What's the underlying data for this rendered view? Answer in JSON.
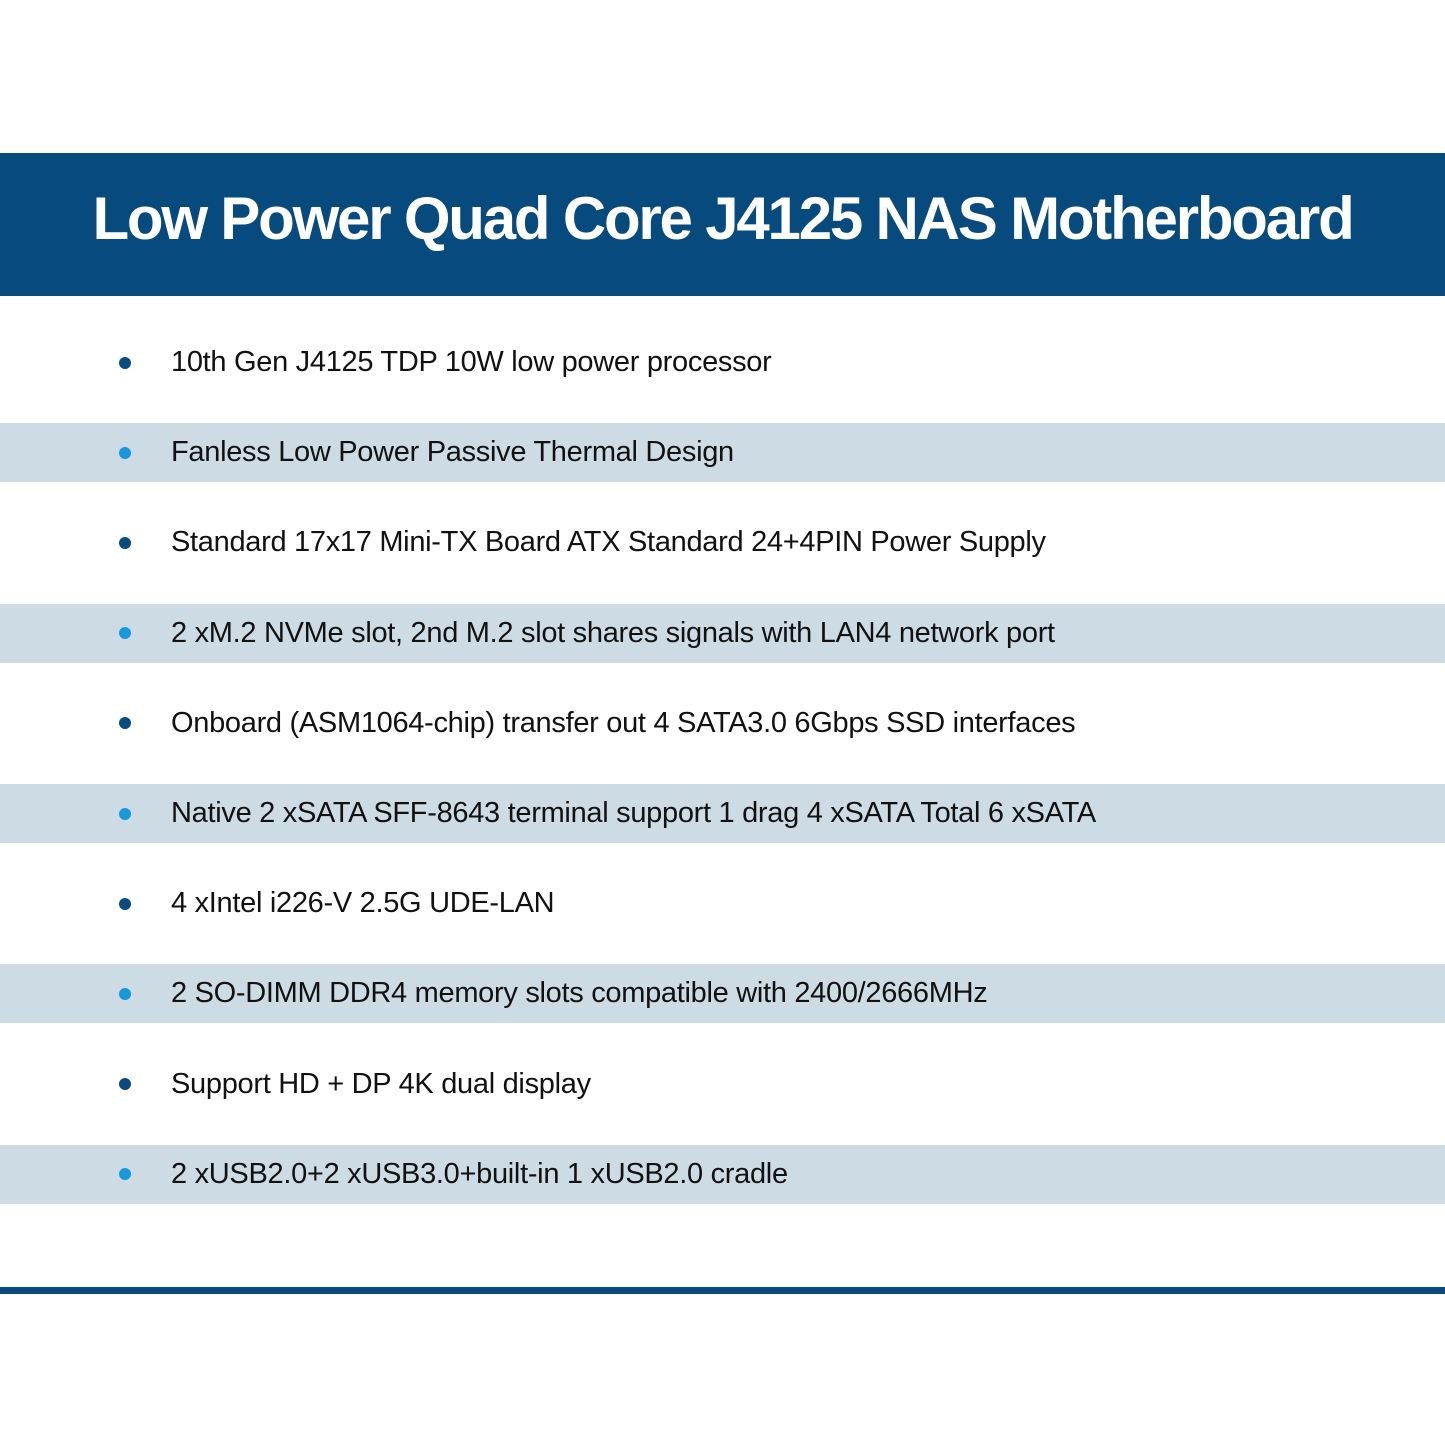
{
  "header": {
    "title": "Low Power Quad Core J4125 NAS Motherboard"
  },
  "colors": {
    "header_bg": "#064a7e",
    "shaded_row": "#cddbe5",
    "bullet_dark": "#0b4a7f",
    "bullet_light": "#1798db"
  },
  "features": [
    "10th Gen J4125 TDP 10W low power processor",
    "Fanless Low Power Passive Thermal Design",
    "Standard 17x17 Mini-TX Board ATX Standard 24+4PIN Power Supply",
    "2 xM.2 NVMe slot, 2nd M.2 slot shares signals with LAN4 network port",
    "Onboard (ASM1064-chip) transfer out 4 SATA3.0 6Gbps SSD interfaces",
    "Native 2 xSATA SFF-8643 terminal support 1 drag 4 xSATA Total 6 xSATA",
    "4 xIntel i226-V 2.5G UDE-LAN",
    "2 SO-DIMM DDR4 memory slots compatible with 2400/2666MHz",
    "Support HD + DP 4K dual display",
    "2 xUSB2.0+2 xUSB3.0+built-in 1 xUSB2.0 cradle"
  ]
}
